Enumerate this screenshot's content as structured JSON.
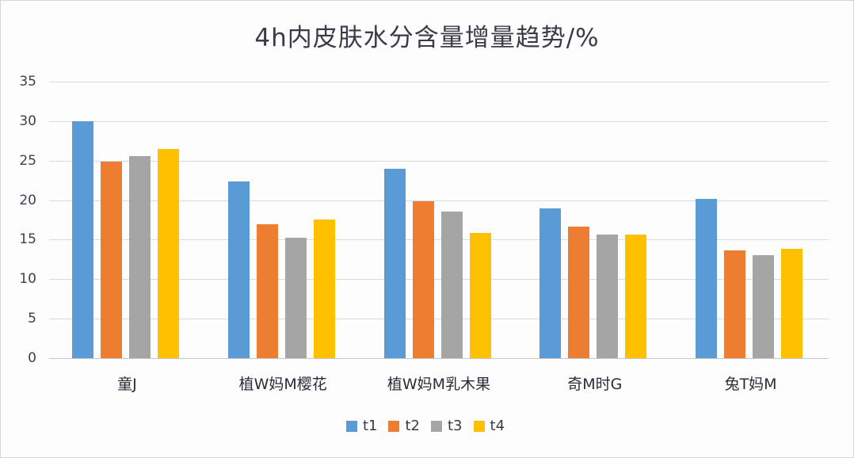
{
  "chart_data": {
    "type": "bar",
    "title": "4h内皮肤水分含量增量趋势/%",
    "xlabel": "",
    "ylabel": "",
    "ylim": [
      0,
      35
    ],
    "yticks": [
      0,
      5,
      10,
      15,
      20,
      25,
      30,
      35
    ],
    "grid": true,
    "legend_position": "bottom",
    "categories": [
      "童J",
      "植W妈M樱花",
      "植W妈M乳木果",
      "奇M时G",
      "兔T妈M"
    ],
    "series": [
      {
        "name": "t1",
        "color": "#5b9bd5",
        "values": [
          30.0,
          22.4,
          24.0,
          19.0,
          20.2
        ]
      },
      {
        "name": "t2",
        "color": "#ed7d31",
        "values": [
          24.9,
          17.0,
          19.9,
          16.6,
          13.6
        ]
      },
      {
        "name": "t3",
        "color": "#a5a5a5",
        "values": [
          25.6,
          15.2,
          18.6,
          15.6,
          13.0
        ]
      },
      {
        "name": "t4",
        "color": "#ffc000",
        "values": [
          26.5,
          17.6,
          15.8,
          15.6,
          13.8
        ]
      }
    ]
  }
}
